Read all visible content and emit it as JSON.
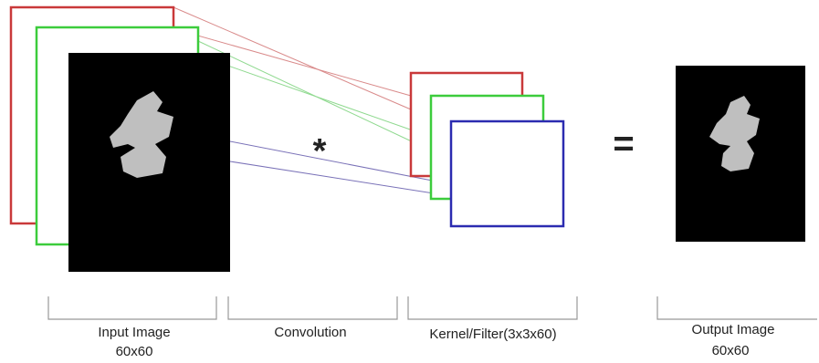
{
  "operators": {
    "convolution": "*",
    "equals": "="
  },
  "labels": [
    {
      "lines": [
        "Input Image",
        "60x60"
      ]
    },
    {
      "lines": [
        "Convolution"
      ]
    },
    {
      "lines": [
        "Kernel/Filter(3x3x60)"
      ]
    },
    {
      "lines": [
        "Output Image",
        "60x60"
      ]
    }
  ]
}
